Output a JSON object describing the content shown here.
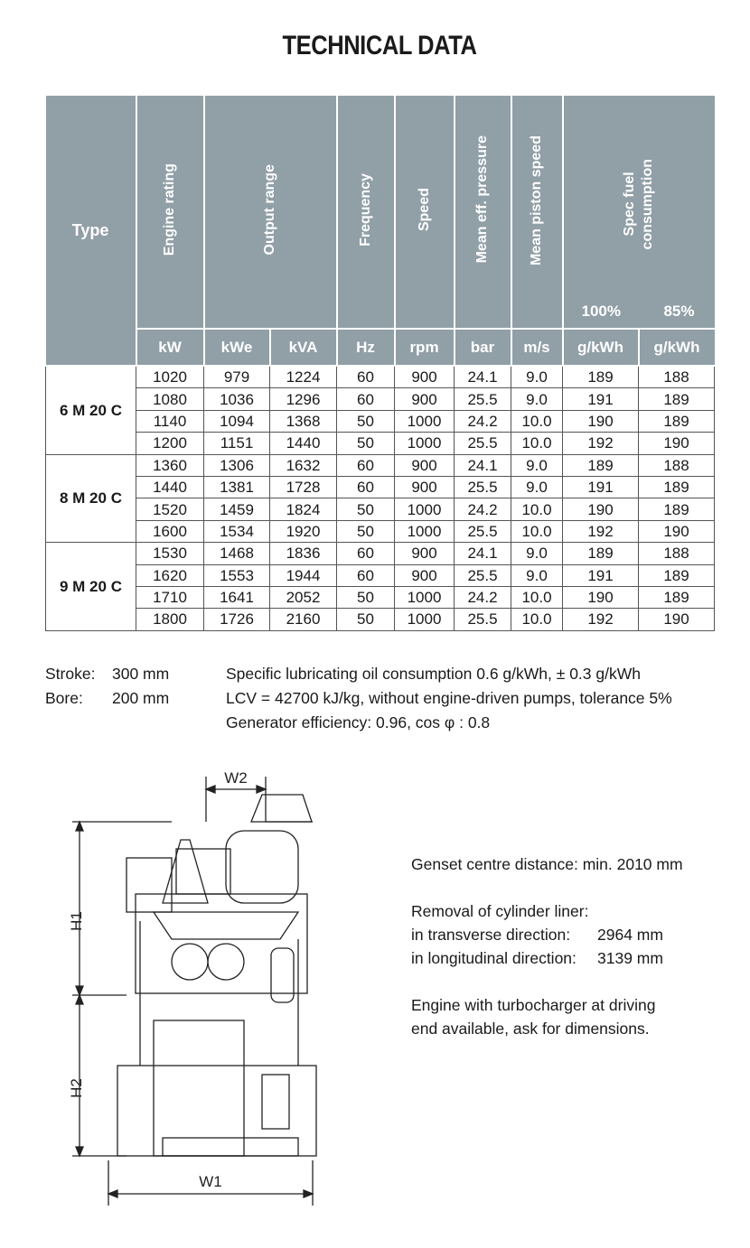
{
  "title": "TECHNICAL DATA",
  "table": {
    "headers": {
      "type": "Type",
      "engine_rating": "Engine rating",
      "output_range": "Output range",
      "frequency": "Frequency",
      "speed": "Speed",
      "mean_eff_pressure": "Mean eff. pressure",
      "mean_piston_speed": "Mean piston speed",
      "spec_fuel": "Spec fuel\nconsumption",
      "fuel_100": "100%",
      "fuel_85": "85%"
    },
    "units": [
      "kW",
      "kWe",
      "kVA",
      "Hz",
      "rpm",
      "bar",
      "m/s",
      "g/kWh",
      "g/kWh"
    ],
    "groups": [
      {
        "type": "6 M 20 C",
        "rows": [
          [
            "1020",
            "979",
            "1224",
            "60",
            "900",
            "24.1",
            "9.0",
            "189",
            "188"
          ],
          [
            "1080",
            "1036",
            "1296",
            "60",
            "900",
            "25.5",
            "9.0",
            "191",
            "189"
          ],
          [
            "1140",
            "1094",
            "1368",
            "50",
            "1000",
            "24.2",
            "10.0",
            "190",
            "189"
          ],
          [
            "1200",
            "1151",
            "1440",
            "50",
            "1000",
            "25.5",
            "10.0",
            "192",
            "190"
          ]
        ]
      },
      {
        "type": "8 M 20 C",
        "rows": [
          [
            "1360",
            "1306",
            "1632",
            "60",
            "900",
            "24.1",
            "9.0",
            "189",
            "188"
          ],
          [
            "1440",
            "1381",
            "1728",
            "60",
            "900",
            "25.5",
            "9.0",
            "191",
            "189"
          ],
          [
            "1520",
            "1459",
            "1824",
            "50",
            "1000",
            "24.2",
            "10.0",
            "190",
            "189"
          ],
          [
            "1600",
            "1534",
            "1920",
            "50",
            "1000",
            "25.5",
            "10.0",
            "192",
            "190"
          ]
        ]
      },
      {
        "type": "9 M 20 C",
        "rows": [
          [
            "1530",
            "1468",
            "1836",
            "60",
            "900",
            "24.1",
            "9.0",
            "189",
            "188"
          ],
          [
            "1620",
            "1553",
            "1944",
            "60",
            "900",
            "25.5",
            "9.0",
            "191",
            "189"
          ],
          [
            "1710",
            "1641",
            "2052",
            "50",
            "1000",
            "24.2",
            "10.0",
            "190",
            "189"
          ],
          [
            "1800",
            "1726",
            "2160",
            "50",
            "1000",
            "25.5",
            "10.0",
            "192",
            "190"
          ]
        ]
      }
    ]
  },
  "notes": {
    "stroke_label": "Stroke:",
    "stroke_value": "300 mm",
    "bore_label": "Bore:",
    "bore_value": "200 mm",
    "lines": [
      "Specific lubricating oil consumption 0.6 g/kWh, ± 0.3 g/kWh",
      "LCV = 42700 kJ/kg, without engine-driven pumps, tolerance 5%",
      "Generator efficiency: 0.96, cos φ : 0.8"
    ]
  },
  "drawing": {
    "w1": "W1",
    "w2": "W2",
    "h1": "H1",
    "h2": "H2"
  },
  "side_info": {
    "centre_distance": "Genset centre distance: min. 2010 mm",
    "removal_title": "Removal of cylinder liner:",
    "transverse_label": "in transverse direction:",
    "transverse_value": "2964 mm",
    "longitudinal_label": "in longitudinal direction:",
    "longitudinal_value": "3139 mm",
    "turbo_line1": "Engine with turbocharger at driving",
    "turbo_line2": "end available, ask for dimensions."
  }
}
